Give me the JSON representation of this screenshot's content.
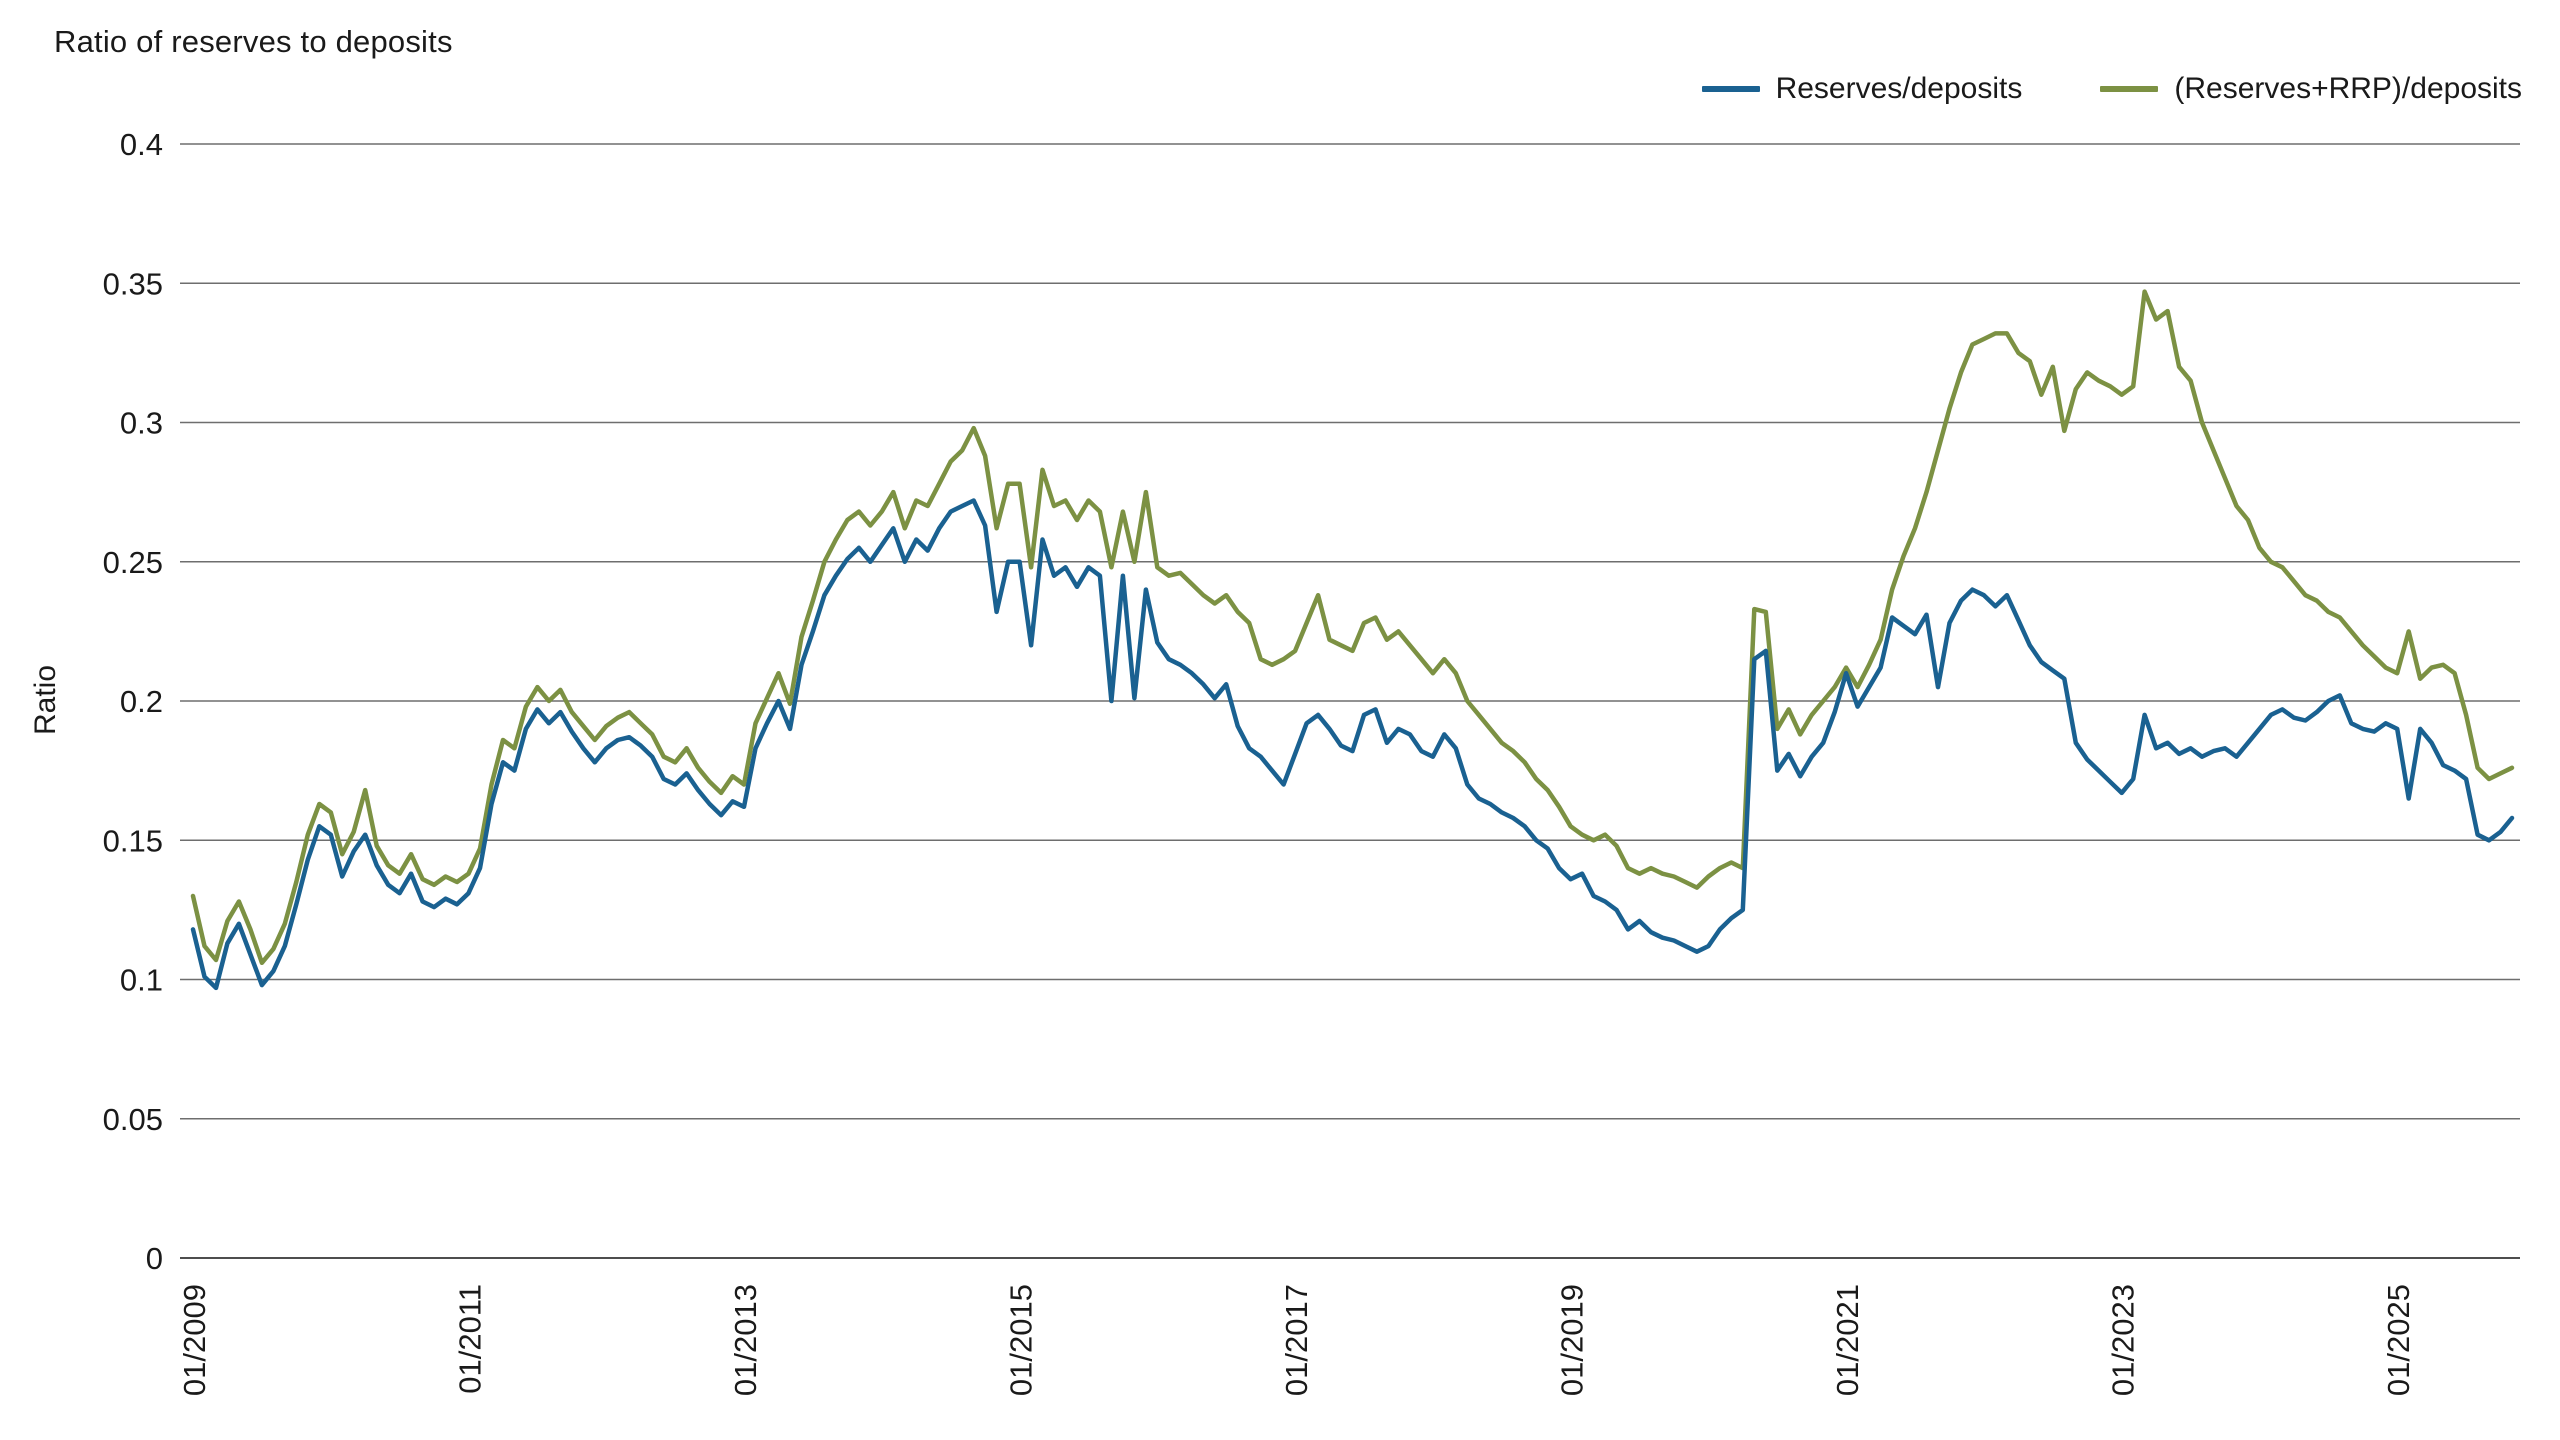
{
  "page": {
    "background": "#ffffff"
  },
  "header": {
    "title": "Ratio of reserves to deposits"
  },
  "chart_data": {
    "type": "line",
    "title": "Ratio of reserves to deposits",
    "xlabel": "",
    "ylabel": "Ratio",
    "ylim": [
      0,
      0.4
    ],
    "y_ticks": [
      0,
      0.05,
      0.1,
      0.15,
      0.2,
      0.25,
      0.3,
      0.35,
      0.4
    ],
    "y_tick_labels": [
      "0",
      "0.05",
      "0.1",
      "0.15",
      "0.2",
      "0.25",
      "0.3",
      "0.35",
      "0.4"
    ],
    "x_tick_labels": [
      "01/2009",
      "01/2011",
      "01/2013",
      "01/2015",
      "01/2017",
      "01/2019",
      "01/2021",
      "01/2023",
      "01/2025"
    ],
    "x_tick_interval_months": 24,
    "x_start": "01/2009",
    "x_end": "11/2025",
    "frequency": "monthly",
    "grid": "horizontal",
    "legend_position": "top-right",
    "gridline_color": "#6e6e6e",
    "axis_line_color": "#4d4d4d",
    "text_color": "#1a1a1a",
    "series": [
      {
        "name": "Reserves/deposits",
        "color": "#1a6191",
        "values": [
          0.118,
          0.101,
          0.097,
          0.113,
          0.12,
          0.109,
          0.098,
          0.103,
          0.112,
          0.127,
          0.143,
          0.155,
          0.152,
          0.137,
          0.146,
          0.152,
          0.141,
          0.134,
          0.131,
          0.138,
          0.128,
          0.126,
          0.129,
          0.127,
          0.131,
          0.14,
          0.163,
          0.178,
          0.175,
          0.19,
          0.197,
          0.192,
          0.196,
          0.189,
          0.183,
          0.178,
          0.183,
          0.186,
          0.187,
          0.184,
          0.18,
          0.172,
          0.17,
          0.174,
          0.168,
          0.163,
          0.159,
          0.164,
          0.162,
          0.183,
          0.192,
          0.2,
          0.19,
          0.213,
          0.225,
          0.238,
          0.245,
          0.251,
          0.255,
          0.25,
          0.256,
          0.262,
          0.25,
          0.258,
          0.254,
          0.262,
          0.268,
          0.27,
          0.272,
          0.263,
          0.232,
          0.25,
          0.25,
          0.22,
          0.258,
          0.245,
          0.248,
          0.241,
          0.248,
          0.245,
          0.2,
          0.245,
          0.201,
          0.24,
          0.221,
          0.215,
          0.213,
          0.21,
          0.206,
          0.201,
          0.206,
          0.191,
          0.183,
          0.18,
          0.175,
          0.17,
          0.181,
          0.192,
          0.195,
          0.19,
          0.184,
          0.182,
          0.195,
          0.197,
          0.185,
          0.19,
          0.188,
          0.182,
          0.18,
          0.188,
          0.183,
          0.17,
          0.165,
          0.163,
          0.16,
          0.158,
          0.155,
          0.15,
          0.147,
          0.14,
          0.136,
          0.138,
          0.13,
          0.128,
          0.125,
          0.118,
          0.121,
          0.117,
          0.115,
          0.114,
          0.112,
          0.11,
          0.112,
          0.118,
          0.122,
          0.125,
          0.215,
          0.218,
          0.175,
          0.181,
          0.173,
          0.18,
          0.185,
          0.196,
          0.21,
          0.198,
          0.205,
          0.212,
          0.23,
          0.227,
          0.224,
          0.231,
          0.205,
          0.228,
          0.236,
          0.24,
          0.238,
          0.234,
          0.238,
          0.229,
          0.22,
          0.214,
          0.211,
          0.208,
          0.185,
          0.179,
          0.175,
          0.171,
          0.167,
          0.172,
          0.195,
          0.183,
          0.185,
          0.181,
          0.183,
          0.18,
          0.182,
          0.183,
          0.18,
          0.185,
          0.19,
          0.195,
          0.197,
          0.194,
          0.193,
          0.196,
          0.2,
          0.202,
          0.192,
          0.19,
          0.189,
          0.192,
          0.19,
          0.165,
          0.19,
          0.185,
          0.177,
          0.175,
          0.172,
          0.152,
          0.15,
          0.153,
          0.158
        ]
      },
      {
        "name": "(Reserves+RRP)/deposits",
        "color": "#7c9143",
        "values": [
          0.13,
          0.112,
          0.107,
          0.121,
          0.128,
          0.118,
          0.106,
          0.111,
          0.12,
          0.135,
          0.152,
          0.163,
          0.16,
          0.145,
          0.153,
          0.168,
          0.148,
          0.141,
          0.138,
          0.145,
          0.136,
          0.134,
          0.137,
          0.135,
          0.138,
          0.147,
          0.17,
          0.186,
          0.183,
          0.198,
          0.205,
          0.2,
          0.204,
          0.196,
          0.191,
          0.186,
          0.191,
          0.194,
          0.196,
          0.192,
          0.188,
          0.18,
          0.178,
          0.183,
          0.176,
          0.171,
          0.167,
          0.173,
          0.17,
          0.192,
          0.201,
          0.21,
          0.199,
          0.223,
          0.236,
          0.25,
          0.258,
          0.265,
          0.268,
          0.263,
          0.268,
          0.275,
          0.262,
          0.272,
          0.27,
          0.278,
          0.286,
          0.29,
          0.298,
          0.288,
          0.262,
          0.278,
          0.278,
          0.248,
          0.283,
          0.27,
          0.272,
          0.265,
          0.272,
          0.268,
          0.248,
          0.268,
          0.25,
          0.275,
          0.248,
          0.245,
          0.246,
          0.242,
          0.238,
          0.235,
          0.238,
          0.232,
          0.228,
          0.215,
          0.213,
          0.215,
          0.218,
          0.228,
          0.238,
          0.222,
          0.22,
          0.218,
          0.228,
          0.23,
          0.222,
          0.225,
          0.22,
          0.215,
          0.21,
          0.215,
          0.21,
          0.2,
          0.195,
          0.19,
          0.185,
          0.182,
          0.178,
          0.172,
          0.168,
          0.162,
          0.155,
          0.152,
          0.15,
          0.152,
          0.148,
          0.14,
          0.138,
          0.14,
          0.138,
          0.137,
          0.135,
          0.133,
          0.137,
          0.14,
          0.142,
          0.14,
          0.233,
          0.232,
          0.19,
          0.197,
          0.188,
          0.195,
          0.2,
          0.205,
          0.212,
          0.205,
          0.213,
          0.222,
          0.24,
          0.252,
          0.262,
          0.275,
          0.29,
          0.305,
          0.318,
          0.328,
          0.33,
          0.332,
          0.332,
          0.325,
          0.322,
          0.31,
          0.32,
          0.297,
          0.312,
          0.318,
          0.315,
          0.313,
          0.31,
          0.313,
          0.347,
          0.337,
          0.34,
          0.32,
          0.315,
          0.3,
          0.29,
          0.28,
          0.27,
          0.265,
          0.255,
          0.25,
          0.248,
          0.243,
          0.238,
          0.236,
          0.232,
          0.23,
          0.225,
          0.22,
          0.216,
          0.212,
          0.21,
          0.225,
          0.208,
          0.212,
          0.213,
          0.21,
          0.195,
          0.176,
          0.172,
          0.174,
          0.176
        ]
      }
    ]
  }
}
